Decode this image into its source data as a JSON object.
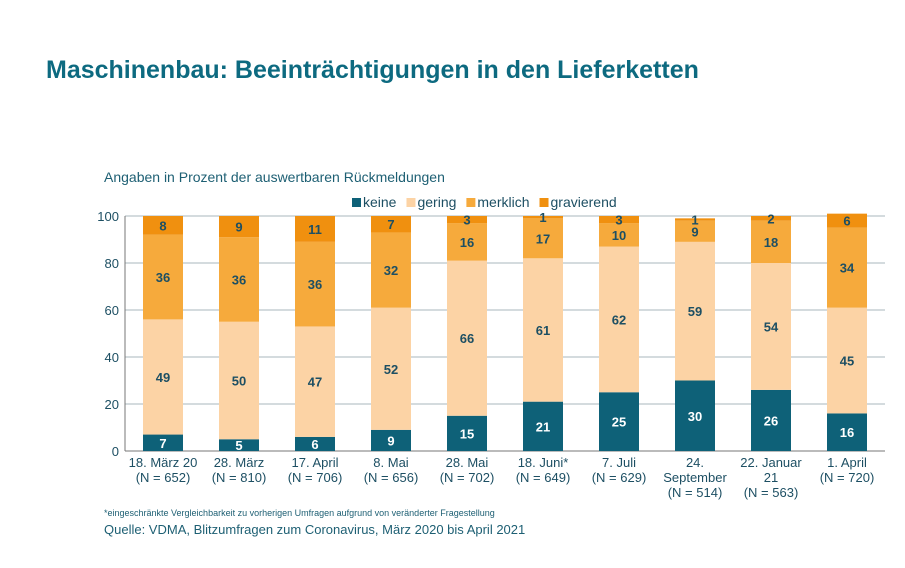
{
  "title": "Maschinenbau: Beeinträchtigungen in den Lieferketten",
  "chart_data": {
    "type": "bar",
    "stacked": true,
    "subtitle": "Angaben in Prozent der auswertbaren Rückmeldungen",
    "categories": [
      [
        "18. März 20",
        "(N = 652)"
      ],
      [
        "28. März",
        "(N = 810)"
      ],
      [
        "17. April",
        "(N = 706)"
      ],
      [
        "8. Mai",
        "(N = 656)"
      ],
      [
        "28. Mai",
        "(N = 702)"
      ],
      [
        "18. Juni*",
        "(N = 649)"
      ],
      [
        "7. Juli",
        "(N = 629)"
      ],
      [
        "24.",
        "September",
        "(N = 514)"
      ],
      [
        "22. Januar",
        "21",
        "(N = 563)"
      ],
      [
        "1. April",
        "(N = 720)"
      ]
    ],
    "series": [
      {
        "name": "keine",
        "color": "#0e6178",
        "label_color": "#ffffff",
        "values": [
          7,
          5,
          6,
          9,
          15,
          21,
          25,
          30,
          26,
          16
        ]
      },
      {
        "name": "gering",
        "color": "#fcd3a5",
        "label_color": "#1d4f63",
        "values": [
          49,
          50,
          47,
          52,
          66,
          61,
          62,
          59,
          54,
          45
        ]
      },
      {
        "name": "merklich",
        "color": "#f6aa3c",
        "label_color": "#1d4f63",
        "values": [
          36,
          36,
          36,
          32,
          16,
          17,
          10,
          9,
          18,
          34
        ]
      },
      {
        "name": "gravierend",
        "color": "#f0900f",
        "label_color": "#1d4f63",
        "values": [
          8,
          9,
          11,
          7,
          3,
          1,
          3,
          1,
          2,
          6
        ]
      }
    ],
    "ylim": [
      0,
      100
    ],
    "yticks": [
      0,
      20,
      40,
      60,
      80,
      100
    ],
    "grid": true,
    "legend_position": "top-center"
  },
  "footnote": "*eingeschränkte Vergleichbarkeit zu vorherigen Umfragen aufgrund von veränderter Fragestellung",
  "source": "Quelle: VDMA, Blitzumfragen zum Coronavirus, März 2020 bis April 2021"
}
